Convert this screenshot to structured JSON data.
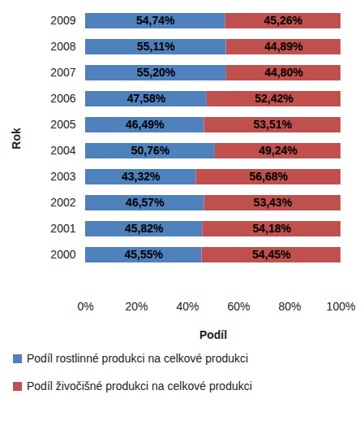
{
  "chart_data": {
    "type": "bar",
    "orientation": "horizontal",
    "stacked": true,
    "data_labels": true,
    "legend": "bottom",
    "x_label": "Podíl",
    "y_label": "Rok",
    "categories": [
      "2000",
      "2001",
      "2002",
      "2003",
      "2004",
      "2005",
      "2006",
      "2007",
      "2008",
      "2009"
    ],
    "series": [
      {
        "name": "Podíl rostlinné produkci na celkové produkci",
        "color": "#4f81bd",
        "values": [
          45.55,
          45.82,
          46.57,
          43.32,
          50.76,
          46.49,
          47.58,
          55.2,
          55.11,
          54.74
        ],
        "value_labels": [
          "45,55%",
          "45,82%",
          "46,57%",
          "43,32%",
          "50,76%",
          "46,49%",
          "47,58%",
          "55,20%",
          "55,11%",
          "54,74%"
        ]
      },
      {
        "name": "Podíl živočišné produkci na celkové produkci",
        "color": "#c0504d",
        "values": [
          54.45,
          54.18,
          53.43,
          56.68,
          49.24,
          53.51,
          52.42,
          44.8,
          44.89,
          45.26
        ],
        "value_labels": [
          "54,45%",
          "54,18%",
          "53,43%",
          "56,68%",
          "49,24%",
          "53,51%",
          "52,42%",
          "44,80%",
          "44,89%",
          "45,26%"
        ]
      }
    ],
    "xlim": [
      0,
      100
    ],
    "xticks": [
      {
        "value": 0,
        "label": "0%"
      },
      {
        "value": 20,
        "label": "20%"
      },
      {
        "value": 40,
        "label": "40%"
      },
      {
        "value": 60,
        "label": "60%"
      },
      {
        "value": 80,
        "label": "80%"
      },
      {
        "value": 100,
        "label": "100%"
      }
    ]
  }
}
